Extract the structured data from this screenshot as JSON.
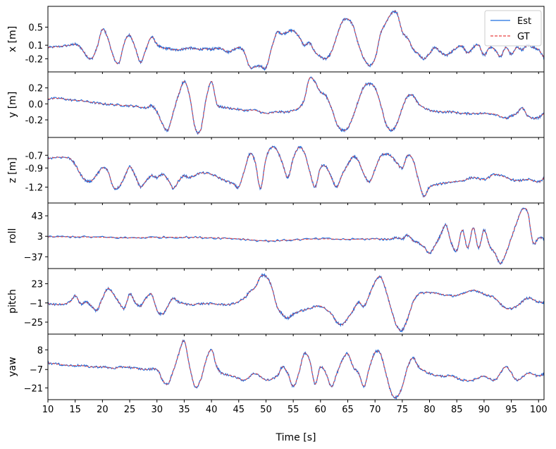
{
  "chart_data": {
    "type": "line",
    "xlabel": "Time [s]",
    "xlim": [
      10,
      101
    ],
    "xticks": [
      10,
      15,
      20,
      25,
      30,
      35,
      40,
      45,
      50,
      55,
      60,
      65,
      70,
      75,
      80,
      85,
      90,
      95,
      100
    ],
    "legend": {
      "placement": "top-right",
      "entries": [
        {
          "name": "Est",
          "color": "#1f6fe0",
          "style": "solid"
        },
        {
          "name": "GT",
          "color": "#e84040",
          "style": "dashed"
        }
      ]
    },
    "panels": [
      {
        "ylabel": "x [m]",
        "yticks": [
          0.5,
          0.1,
          -0.2
        ],
        "ytick_labels": [
          "0.5",
          "0.1",
          "-0.2"
        ],
        "ylim": [
          -0.49,
          0.96
        ],
        "x": [
          10,
          12,
          14,
          15,
          16,
          17,
          18,
          19,
          20,
          21,
          22,
          23,
          24,
          25,
          26,
          27,
          28,
          29,
          30,
          31,
          32,
          33,
          34,
          35,
          36,
          37,
          38,
          39,
          40,
          41,
          42,
          43,
          44,
          45,
          46,
          47,
          48,
          49,
          50,
          51,
          52,
          53,
          54,
          55,
          56,
          57,
          58,
          59,
          60,
          61,
          62,
          63,
          64,
          65,
          66,
          67,
          68,
          69,
          70,
          71,
          72,
          73,
          74,
          75,
          76,
          77,
          78,
          79,
          80,
          81,
          82,
          83,
          84,
          85,
          86,
          87,
          88,
          89,
          90,
          91,
          92,
          93,
          94,
          95,
          96,
          97,
          98,
          99,
          100,
          101
        ],
        "values": [
          0.05,
          0.07,
          0.1,
          0.12,
          0.05,
          -0.12,
          -0.2,
          0.05,
          0.45,
          0.25,
          -0.15,
          -0.3,
          0.15,
          0.32,
          0.05,
          -0.28,
          0.02,
          0.28,
          0.12,
          0.04,
          0.03,
          0.0,
          0.0,
          0.02,
          0.04,
          0.02,
          0.01,
          0.02,
          0.01,
          0.03,
          0.02,
          -0.05,
          0.0,
          0.05,
          -0.05,
          -0.38,
          -0.38,
          -0.36,
          -0.4,
          0.02,
          0.38,
          0.35,
          0.4,
          0.42,
          0.3,
          0.1,
          0.15,
          -0.05,
          -0.15,
          -0.2,
          -0.05,
          0.3,
          0.62,
          0.68,
          0.52,
          0.1,
          -0.2,
          -0.35,
          -0.2,
          0.35,
          0.6,
          0.8,
          0.82,
          0.4,
          0.25,
          0.02,
          -0.1,
          -0.2,
          -0.08,
          0.05,
          -0.05,
          -0.12,
          -0.05,
          0.05,
          0.08,
          -0.08,
          0.05,
          0.1,
          -0.12,
          0.05,
          0.0,
          -0.15,
          0.05,
          -0.1,
          0.05,
          0.0,
          0.1,
          0.05,
          0.0,
          -0.18
        ]
      },
      {
        "ylabel": "y [m]",
        "yticks": [
          0.2,
          0.0,
          -0.2
        ],
        "ytick_labels": [
          "0.2",
          "0.0",
          "-0.2"
        ],
        "ylim": [
          -0.42,
          0.4
        ],
        "x": [
          10,
          12,
          14,
          16,
          18,
          20,
          22,
          24,
          26,
          28,
          29,
          30,
          31,
          32,
          33,
          34,
          35,
          36,
          37,
          38,
          39,
          40,
          41,
          42,
          44,
          46,
          48,
          50,
          52,
          54,
          56,
          57,
          58,
          59,
          60,
          61,
          62,
          63,
          64,
          65,
          66,
          67,
          68,
          69,
          70,
          71,
          72,
          73,
          74,
          75,
          76,
          77,
          78,
          80,
          82,
          84,
          86,
          88,
          90,
          92,
          94,
          95,
          96,
          97,
          98,
          99,
          100,
          101
        ],
        "values": [
          0.06,
          0.07,
          0.05,
          0.04,
          0.02,
          0.0,
          -0.01,
          -0.02,
          -0.03,
          -0.05,
          -0.02,
          -0.1,
          -0.25,
          -0.33,
          -0.1,
          0.12,
          0.28,
          0.1,
          -0.3,
          -0.33,
          0.05,
          0.28,
          0.0,
          -0.04,
          -0.06,
          -0.08,
          -0.08,
          -0.12,
          -0.1,
          -0.1,
          -0.05,
          0.05,
          0.32,
          0.27,
          0.15,
          0.1,
          -0.05,
          -0.25,
          -0.33,
          -0.3,
          -0.15,
          0.05,
          0.22,
          0.25,
          0.2,
          0.0,
          -0.25,
          -0.33,
          -0.25,
          -0.05,
          0.1,
          0.1,
          0.0,
          -0.08,
          -0.1,
          -0.1,
          -0.12,
          -0.12,
          -0.12,
          -0.13,
          -0.18,
          -0.15,
          -0.12,
          -0.05,
          -0.15,
          -0.18,
          -0.17,
          -0.12
        ]
      },
      {
        "ylabel": "z [m]",
        "yticks": [
          -0.7,
          -0.9,
          -1.2
        ],
        "ytick_labels": [
          "-0.7",
          "-0.9",
          "-1.2"
        ],
        "ylim": [
          -1.45,
          -0.42
        ],
        "x": [
          10,
          12,
          14,
          15,
          16,
          17,
          18,
          19,
          20,
          21,
          22,
          23,
          24,
          25,
          26,
          27,
          28,
          29,
          30,
          31,
          32,
          33,
          34,
          35,
          36,
          38,
          40,
          42,
          44,
          45,
          46,
          47,
          48,
          49,
          50,
          51,
          52,
          53,
          54,
          55,
          56,
          57,
          58,
          59,
          60,
          61,
          62,
          63,
          64,
          65,
          66,
          67,
          68,
          69,
          70,
          71,
          72,
          73,
          74,
          75,
          76,
          77,
          78,
          79,
          80,
          82,
          84,
          86,
          88,
          90,
          92,
          94,
          96,
          98,
          100,
          101
        ],
        "values": [
          -0.75,
          -0.73,
          -0.75,
          -0.85,
          -1.0,
          -1.1,
          -1.1,
          -1.0,
          -0.9,
          -0.95,
          -1.2,
          -1.2,
          -1.05,
          -0.88,
          -1.02,
          -1.2,
          -1.1,
          -1.02,
          -1.05,
          -1.0,
          -1.08,
          -1.22,
          -1.1,
          -1.02,
          -1.05,
          -0.98,
          -1.0,
          -1.08,
          -1.15,
          -1.2,
          -0.95,
          -0.68,
          -0.8,
          -1.22,
          -0.75,
          -0.58,
          -0.62,
          -0.82,
          -1.05,
          -0.75,
          -0.58,
          -0.65,
          -0.95,
          -1.2,
          -0.9,
          -0.88,
          -1.05,
          -1.2,
          -1.0,
          -0.85,
          -0.72,
          -0.8,
          -1.0,
          -1.12,
          -0.92,
          -0.72,
          -0.68,
          -0.72,
          -0.82,
          -0.9,
          -0.7,
          -0.78,
          -1.1,
          -1.35,
          -1.2,
          -1.15,
          -1.12,
          -1.1,
          -1.05,
          -1.08,
          -1.0,
          -1.05,
          -1.1,
          -1.08,
          -1.12,
          -1.05
        ]
      },
      {
        "ylabel": "roll",
        "yticks": [
          43,
          3,
          -37
        ],
        "ytick_labels": [
          "43",
          "3",
          "−37"
        ],
        "ylim": [
          -60,
          68
        ],
        "x": [
          10,
          15,
          20,
          25,
          30,
          35,
          40,
          45,
          50,
          55,
          60,
          65,
          70,
          72,
          74,
          75,
          76,
          77,
          78,
          79,
          80,
          81,
          82,
          83,
          84,
          85,
          86,
          87,
          88,
          89,
          90,
          91,
          92,
          93,
          94,
          95,
          96,
          97,
          98,
          99,
          100,
          101
        ],
        "values": [
          2,
          2,
          1,
          0,
          1,
          1,
          0,
          -2,
          -6,
          -4,
          -2,
          -3,
          -2,
          -3,
          0,
          -2,
          5,
          -6,
          -10,
          -18,
          -30,
          -15,
          5,
          25,
          -10,
          -25,
          15,
          -20,
          20,
          -20,
          15,
          -15,
          -30,
          -50,
          -30,
          0,
          30,
          55,
          50,
          -10,
          0,
          -2
        ]
      },
      {
        "ylabel": "pitch",
        "yticks": [
          23,
          -1,
          -25
        ],
        "ytick_labels": [
          "23",
          "−1",
          "−25"
        ],
        "ylim": [
          -40,
          42
        ],
        "x": [
          10,
          12,
          14,
          15,
          16,
          17,
          18,
          19,
          20,
          21,
          22,
          23,
          24,
          25,
          26,
          27,
          28,
          29,
          30,
          31,
          32,
          33,
          34,
          36,
          38,
          40,
          42,
          44,
          46,
          47,
          48,
          49,
          50,
          51,
          52,
          53,
          54,
          55,
          56,
          58,
          60,
          62,
          63,
          64,
          65,
          66,
          67,
          68,
          69,
          70,
          71,
          72,
          73,
          74,
          75,
          76,
          77,
          78,
          80,
          82,
          84,
          86,
          88,
          90,
          92,
          94,
          96,
          98,
          100,
          101
        ],
        "values": [
          -2,
          -3,
          0,
          8,
          -2,
          0,
          -5,
          -10,
          5,
          17,
          10,
          0,
          -8,
          10,
          0,
          -5,
          5,
          10,
          -10,
          -15,
          -5,
          5,
          0,
          -3,
          -2,
          -2,
          -3,
          -2,
          5,
          13,
          18,
          32,
          32,
          20,
          -5,
          -15,
          -20,
          -15,
          -12,
          -8,
          -5,
          -15,
          -25,
          -28,
          -20,
          -10,
          0,
          -5,
          10,
          25,
          32,
          15,
          -10,
          -30,
          -35,
          -20,
          0,
          10,
          12,
          10,
          8,
          10,
          15,
          10,
          5,
          -8,
          -5,
          5,
          0,
          0
        ]
      },
      {
        "ylabel": "yaw",
        "yticks": [
          8,
          -7,
          -21
        ],
        "ytick_labels": [
          "8",
          "−7",
          "−21"
        ],
        "ylim": [
          -30,
          20
        ],
        "x": [
          10,
          12,
          14,
          16,
          18,
          20,
          22,
          24,
          26,
          28,
          30,
          31,
          32,
          33,
          34,
          35,
          36,
          37,
          38,
          39,
          40,
          41,
          42,
          44,
          46,
          48,
          50,
          52,
          53,
          54,
          55,
          56,
          57,
          58,
          59,
          60,
          61,
          62,
          63,
          64,
          65,
          66,
          67,
          68,
          69,
          70,
          71,
          72,
          73,
          74,
          75,
          76,
          77,
          78,
          80,
          82,
          84,
          86,
          88,
          90,
          92,
          94,
          96,
          98,
          100,
          101
        ],
        "values": [
          -2,
          -3,
          -4,
          -4,
          -5,
          -5,
          -6,
          -5,
          -6,
          -7,
          -7,
          -15,
          -18,
          -8,
          5,
          15,
          -5,
          -20,
          -15,
          0,
          8,
          -5,
          -10,
          -12,
          -15,
          -10,
          -15,
          -12,
          -5,
          -10,
          -20,
          -10,
          5,
          0,
          -18,
          -5,
          -10,
          -20,
          -10,
          0,
          5,
          -5,
          -10,
          -20,
          -5,
          6,
          5,
          -10,
          -25,
          -28,
          -20,
          -5,
          2,
          -5,
          -10,
          -12,
          -12,
          -15,
          -15,
          -12,
          -15,
          -5,
          -15,
          -10,
          -12,
          -10
        ]
      }
    ]
  }
}
